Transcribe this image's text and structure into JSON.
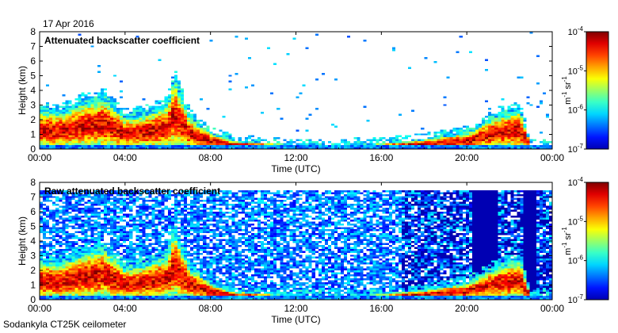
{
  "date": "17 Apr 2016",
  "footer": "Sodankyla CT25K ceilometer",
  "chart_data": [
    {
      "type": "heatmap",
      "title": "Attenuated backscatter coefficient",
      "xlabel": "Time (UTC)",
      "ylabel": "Height (km)",
      "x_ticks": [
        "00:00",
        "04:00",
        "08:00",
        "12:00",
        "16:00",
        "20:00",
        "00:00"
      ],
      "x_hours": [
        0,
        4,
        8,
        12,
        16,
        20,
        24
      ],
      "xlim": [
        0,
        24
      ],
      "y_ticks": [
        "0",
        "1",
        "2",
        "3",
        "4",
        "5",
        "6",
        "7",
        "8"
      ],
      "ylim": [
        0,
        8
      ],
      "colorbar": {
        "scale": "log",
        "range": [
          1e-07,
          0.0001
        ],
        "labels": [
          "10^-7",
          "10^-6",
          "10^-5",
          "10^-4"
        ],
        "unit": "m^-1 sr^-1"
      },
      "features": {
        "cloud_top_km_by_hour": [
          [
            0.0,
            2.8
          ],
          [
            1.0,
            2.7
          ],
          [
            2.0,
            3.4
          ],
          [
            3.0,
            3.8
          ],
          [
            4.0,
            2.3
          ],
          [
            5.0,
            2.6
          ],
          [
            6.0,
            3.2
          ],
          [
            6.3,
            5.2
          ],
          [
            7.0,
            2.4
          ],
          [
            8.0,
            1.2
          ],
          [
            9.0,
            0.6
          ],
          [
            10.0,
            0.5
          ],
          [
            12.0,
            0.3
          ],
          [
            14.0,
            0.3
          ],
          [
            16.0,
            0.4
          ],
          [
            18.0,
            0.7
          ],
          [
            20.0,
            1.2
          ],
          [
            21.5,
            2.5
          ],
          [
            22.5,
            2.9
          ],
          [
            23.0,
            0.3
          ],
          [
            24.0,
            0.2
          ]
        ],
        "noise": "low"
      }
    },
    {
      "type": "heatmap",
      "title": "Raw attenuated backscatter coefficient",
      "xlabel": "Time (UTC)",
      "ylabel": "Height (km)",
      "x_ticks": [
        "00:00",
        "04:00",
        "08:00",
        "12:00",
        "16:00",
        "20:00",
        "00:00"
      ],
      "x_hours": [
        0,
        4,
        8,
        12,
        16,
        20,
        24
      ],
      "xlim": [
        0,
        24
      ],
      "y_ticks": [
        "0",
        "1",
        "2",
        "3",
        "4",
        "5",
        "6",
        "7",
        "8"
      ],
      "ylim": [
        0,
        8
      ],
      "colorbar": {
        "scale": "log",
        "range": [
          1e-07,
          0.0001
        ],
        "labels": [
          "10^-7",
          "10^-6",
          "10^-5",
          "10^-4"
        ],
        "unit": "m^-1 sr^-1"
      },
      "features": {
        "cloud_top_km_by_hour": [
          [
            0.0,
            2.8
          ],
          [
            1.0,
            2.7
          ],
          [
            2.0,
            3.4
          ],
          [
            3.0,
            3.8
          ],
          [
            4.0,
            2.3
          ],
          [
            5.0,
            2.6
          ],
          [
            6.0,
            3.2
          ],
          [
            6.3,
            5.2
          ],
          [
            7.0,
            2.4
          ],
          [
            8.0,
            1.2
          ],
          [
            9.0,
            0.6
          ],
          [
            10.0,
            0.5
          ],
          [
            12.0,
            0.3
          ],
          [
            14.0,
            0.3
          ],
          [
            16.0,
            0.4
          ],
          [
            18.0,
            0.7
          ],
          [
            20.0,
            1.2
          ],
          [
            21.5,
            2.5
          ],
          [
            22.5,
            2.9
          ],
          [
            23.0,
            0.3
          ],
          [
            24.0,
            0.2
          ]
        ],
        "noise": "high",
        "signal_top_km": 7.5
      }
    }
  ]
}
